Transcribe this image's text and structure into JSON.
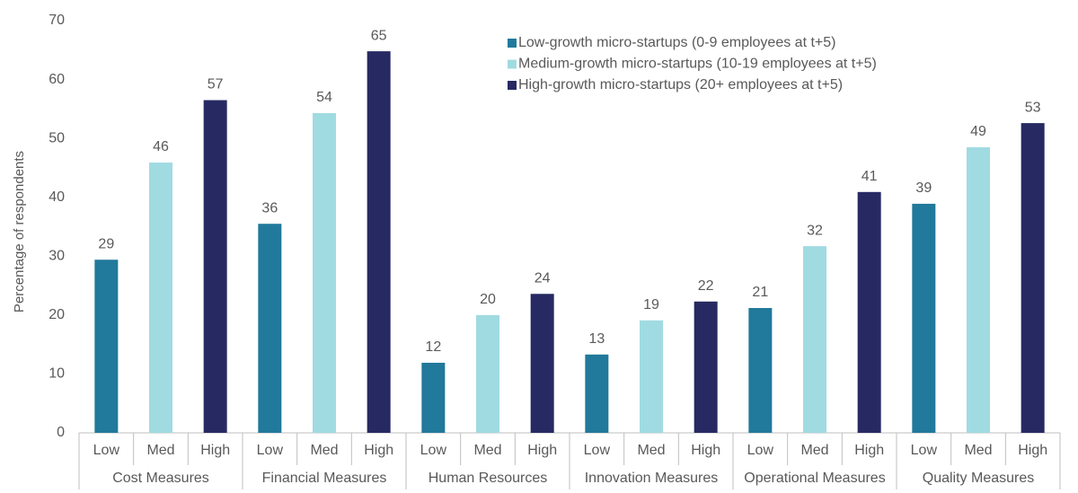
{
  "chart_data": {
    "type": "bar",
    "y_label": "Percentage of respondents",
    "categories": [
      "Cost Measures",
      "Financial Measures",
      "Human Resources",
      "Innovation Measures",
      "Operational Measures",
      "Quality Measures"
    ],
    "sublabels": [
      "Low",
      "Med",
      "High"
    ],
    "series": [
      {
        "name": "Low-growth micro-startups (0-9 employees at t+5)",
        "color": "#21799b",
        "values": [
          29.4,
          35.5,
          11.9,
          13.3,
          21.2,
          38.9
        ],
        "value_labels": [
          "29",
          "36",
          "12",
          "13",
          "21",
          "39"
        ]
      },
      {
        "name": "Medium-growth micro-startups (10-19 employees at t+5)",
        "color": "#a0dbe1",
        "values": [
          45.9,
          54.3,
          20.0,
          19.1,
          31.7,
          48.5
        ],
        "value_labels": [
          "46",
          "54",
          "20",
          "19",
          "32",
          "49"
        ]
      },
      {
        "name": "High-growth micro-startups (20+ employees at t+5)",
        "color": "#272a62",
        "values": [
          56.5,
          64.8,
          23.6,
          22.3,
          40.9,
          52.6
        ],
        "value_labels": [
          "57",
          "65",
          "24",
          "22",
          "41",
          "53"
        ]
      }
    ],
    "ylim": [
      0,
      70
    ],
    "yticks": [
      0,
      10,
      20,
      30,
      40,
      50,
      60,
      70
    ],
    "grid": false,
    "legend": "top-right"
  }
}
